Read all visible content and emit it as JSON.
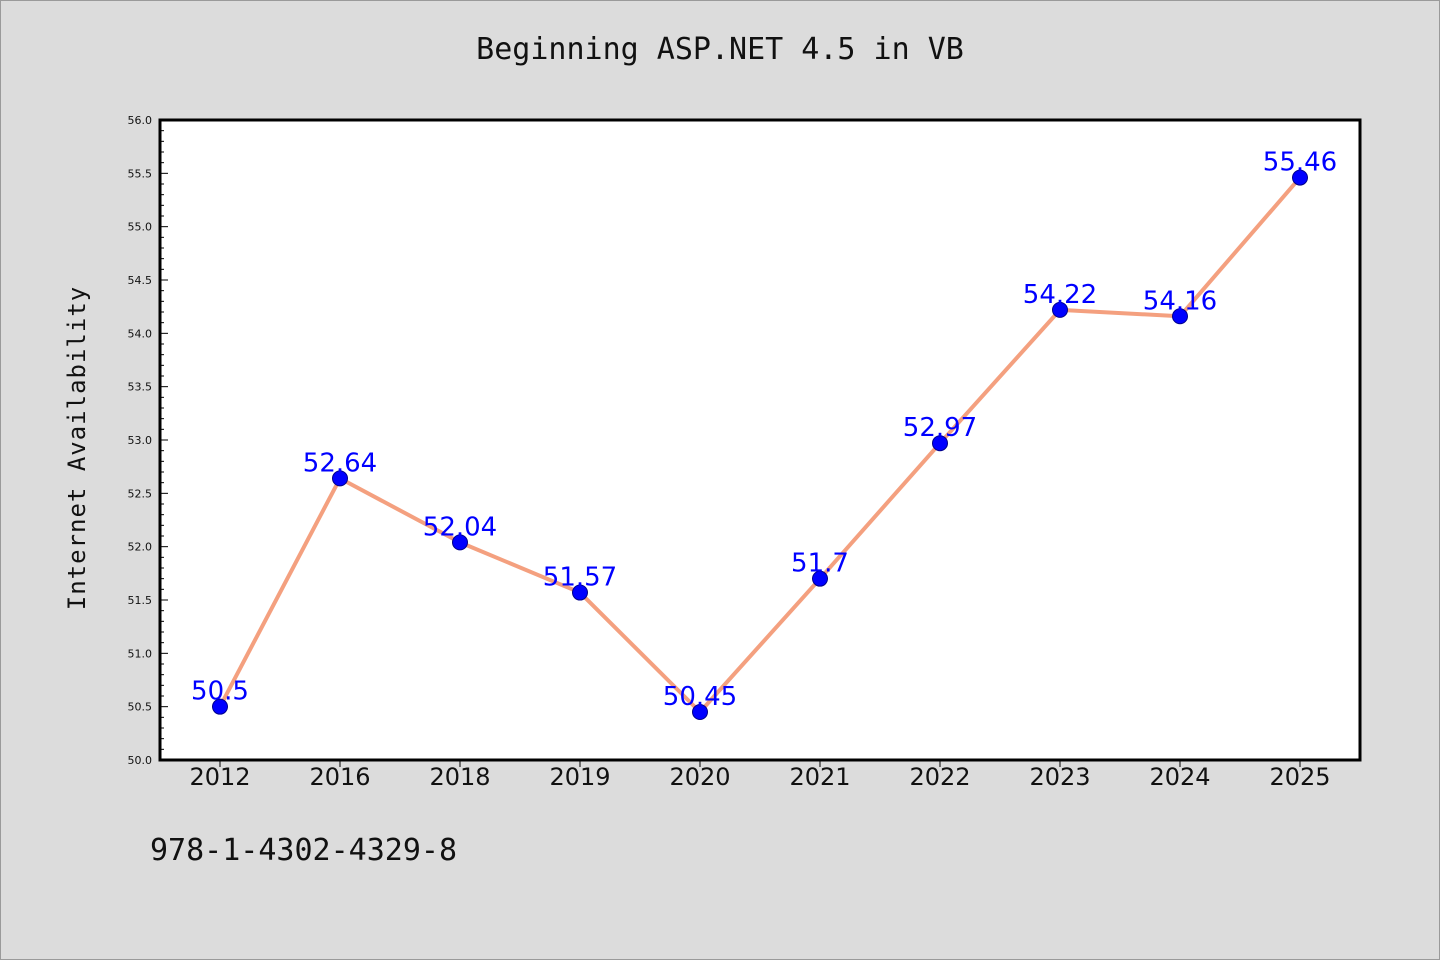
{
  "chart_data": {
    "type": "line",
    "title": "Beginning ASP.NET 4.5 in VB",
    "xlabel": "",
    "ylabel": "Internet Availability",
    "categories": [
      "2012",
      "2016",
      "2018",
      "2019",
      "2020",
      "2021",
      "2022",
      "2023",
      "2024",
      "2025"
    ],
    "series": [
      {
        "values": [
          50.5,
          52.64,
          52.04,
          51.57,
          50.45,
          51.7,
          52.97,
          54.22,
          54.16,
          55.46
        ],
        "labels": [
          "50.5",
          "52.64",
          "52.04",
          "51.57",
          "50.45",
          "51.7",
          "52.97",
          "54.22",
          "54.16",
          "55.46"
        ],
        "line_color": "#f4a07f",
        "marker_color": "#0000ff"
      }
    ],
    "ylim": [
      50.0,
      56.0
    ],
    "yticks": [
      "50.0",
      "50.5",
      "51.0",
      "51.5",
      "52.0",
      "52.5",
      "53.0",
      "53.5",
      "54.0",
      "54.5",
      "55.0",
      "55.5",
      "56.0"
    ],
    "grid": false,
    "legend": "none"
  },
  "footer": {
    "text": "978-1-4302-4329-8"
  },
  "colors": {
    "background": "#dcdcdc",
    "plot_background": "#ffffff",
    "line": "#f4a07f",
    "marker": "#0000ff",
    "data_label": "#0000ff"
  }
}
